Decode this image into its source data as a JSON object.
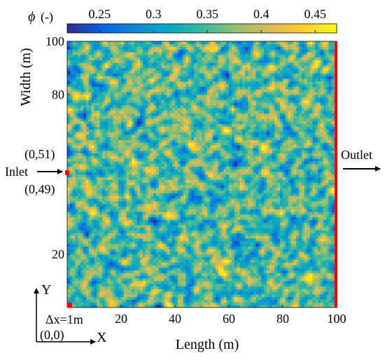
{
  "chart_data": {
    "type": "heatmap",
    "title": "",
    "xlabel": "Length (m)",
    "ylabel": "Width (m)",
    "xlim": [
      0,
      100
    ],
    "ylim": [
      0,
      100
    ],
    "xticks": [
      20,
      40,
      60,
      80,
      100
    ],
    "yticks": [
      20,
      80,
      100
    ],
    "grid": false,
    "colorbar": {
      "label_symbol": "ϕ",
      "label_unit": "(-)",
      "location": "top",
      "ticks": [
        "0.25",
        "0.3",
        "0.35",
        "0.4",
        "0.45"
      ],
      "tick_values": [
        0.25,
        0.3,
        0.35,
        0.4,
        0.45
      ],
      "range": [
        0.22,
        0.47
      ],
      "colormap": "parula"
    },
    "field": {
      "description": "random porosity field",
      "nx": 100,
      "ny": 100,
      "cell_size_m": 1,
      "mean": 0.35,
      "min": 0.22,
      "max": 0.47
    },
    "boundary_colors": {
      "outlet_edge": "#ff0000",
      "inlet_marker": "#ff0000"
    },
    "annotations": {
      "inlet_label": "Inlet",
      "outlet_label": "Outlet",
      "inlet_top_coord": "(0,51)",
      "inlet_bottom_coord": "(0,49)",
      "cell_size_label": "Δx=1m",
      "origin_label": "(0,0)",
      "axis_x_label": "X",
      "axis_y_label": "Y"
    }
  }
}
